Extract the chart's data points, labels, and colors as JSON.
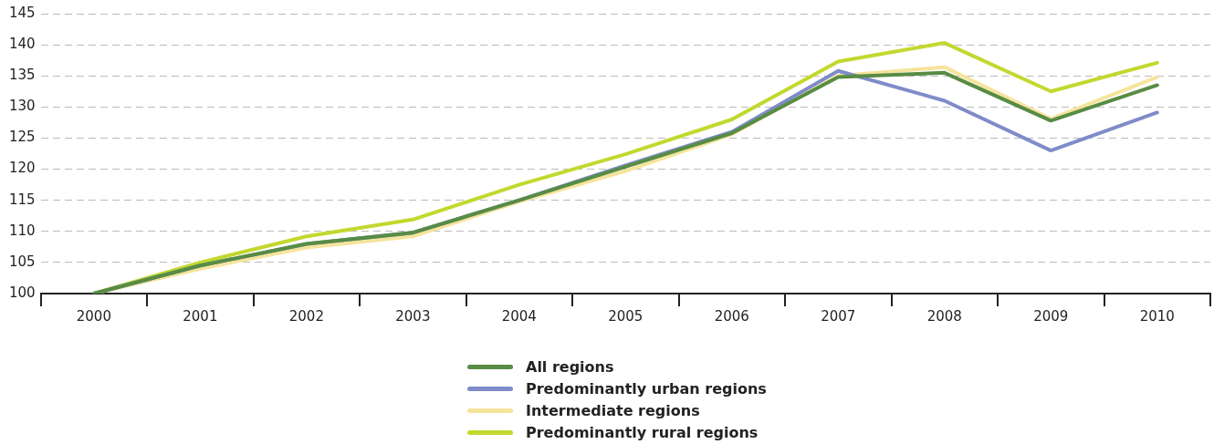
{
  "chart_data": {
    "type": "line",
    "categories": [
      "2000",
      "2001",
      "2002",
      "2003",
      "2004",
      "2005",
      "2006",
      "2007",
      "2008",
      "2009",
      "2010"
    ],
    "series": [
      {
        "name": "All regions",
        "color": "#588c44",
        "values": [
          100,
          104.5,
          108.0,
          109.8,
          115.0,
          120.4,
          125.8,
          134.8,
          135.5,
          127.8,
          133.5
        ]
      },
      {
        "name": "Predominantly urban regions",
        "color": "#7f8cc8",
        "values": [
          100,
          104.5,
          108.0,
          109.8,
          115.0,
          120.6,
          126.0,
          135.8,
          131.0,
          123.0,
          129.1
        ]
      },
      {
        "name": "Intermediate regions",
        "color": "#f5e49c",
        "values": [
          100,
          104.0,
          107.4,
          109.2,
          114.8,
          119.7,
          125.6,
          135.0,
          136.4,
          128.1,
          134.8
        ]
      },
      {
        "name": "Predominantly rural regions",
        "color": "#c2d82e",
        "values": [
          100,
          105.0,
          109.2,
          111.9,
          117.5,
          122.4,
          128.0,
          137.3,
          140.3,
          132.5,
          137.1
        ]
      }
    ],
    "ylim": [
      100,
      145
    ],
    "yticks": [
      100,
      105,
      110,
      115,
      120,
      125,
      130,
      135,
      140,
      145
    ],
    "grid": "y",
    "legend": "bottom",
    "marker": "none",
    "line_style": "solid"
  }
}
